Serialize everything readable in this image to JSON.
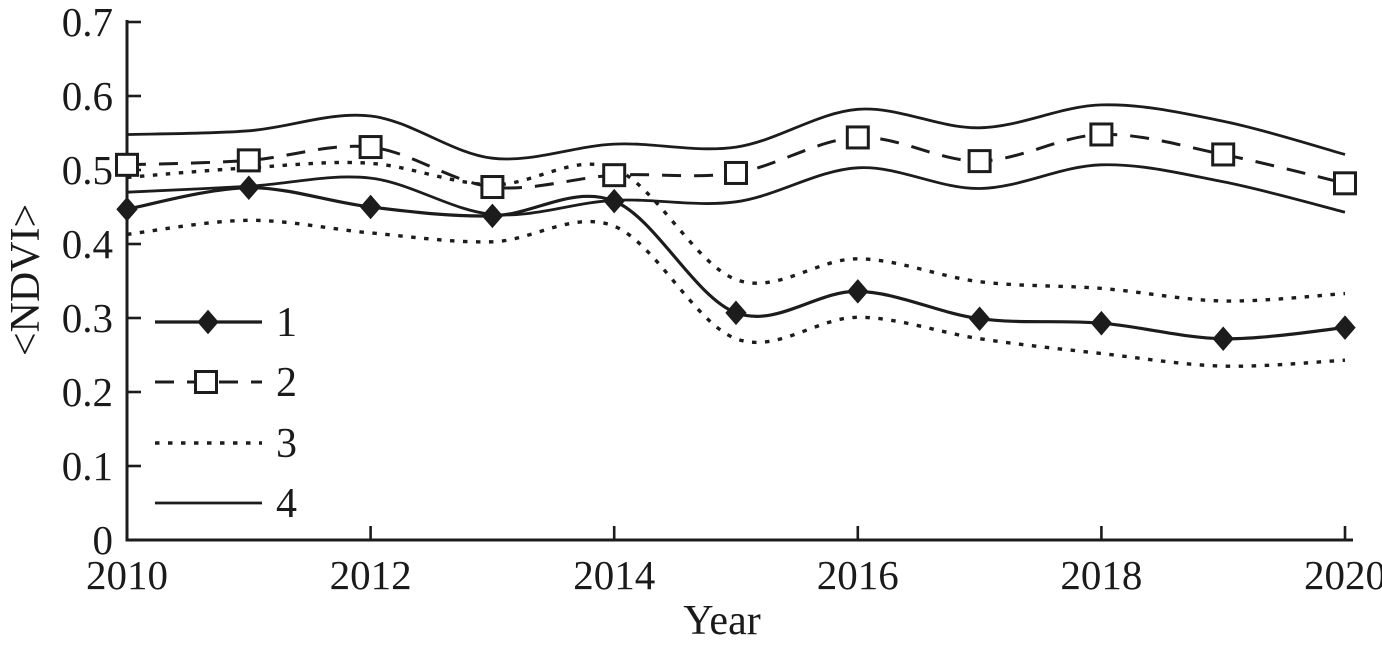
{
  "figure": {
    "y_axis_label": "<NDVI>",
    "x_axis_label": "Year"
  },
  "chart_data": {
    "type": "line",
    "title": "",
    "xlabel": "Year",
    "ylabel": "<NDVI>",
    "xlim": [
      2010,
      2020
    ],
    "ylim": [
      0,
      0.7
    ],
    "grid": false,
    "legend_position": "inside-lower-left",
    "x": [
      2010,
      2011,
      2012,
      2013,
      2014,
      2015,
      2016,
      2017,
      2018,
      2019,
      2020
    ],
    "x_tick_labels": [
      "2010",
      "2012",
      "2014",
      "2016",
      "2018",
      "2020"
    ],
    "y_tick_labels": [
      "0",
      "0.1",
      "0.2",
      "0.3",
      "0.4",
      "0.5",
      "0.6",
      "0.7"
    ],
    "y_tick_values": [
      0,
      0.1,
      0.2,
      0.3,
      0.4,
      0.5,
      0.6,
      0.7
    ],
    "series": [
      {
        "name": "1",
        "line": "solid",
        "marker": "filled-diamond",
        "values": [
          0.447,
          0.476,
          0.45,
          0.438,
          0.458,
          0.307,
          0.336,
          0.299,
          0.293,
          0.272,
          0.287
        ]
      },
      {
        "name": "2",
        "line": "dashed",
        "marker": "open-square",
        "values": [
          0.507,
          0.513,
          0.531,
          0.477,
          0.493,
          0.496,
          0.544,
          0.512,
          0.548,
          0.521,
          0.482
        ]
      },
      {
        "name": "3",
        "line": "dotted",
        "marker": "none",
        "band": true,
        "upper": [
          0.49,
          0.503,
          0.509,
          0.48,
          0.502,
          0.352,
          0.38,
          0.349,
          0.34,
          0.323,
          0.333
        ],
        "lower": [
          0.413,
          0.432,
          0.415,
          0.403,
          0.424,
          0.272,
          0.301,
          0.272,
          0.252,
          0.235,
          0.243
        ]
      },
      {
        "name": "4",
        "line": "solid",
        "marker": "none",
        "band": true,
        "upper": [
          0.548,
          0.553,
          0.573,
          0.516,
          0.535,
          0.531,
          0.582,
          0.557,
          0.588,
          0.566,
          0.521
        ],
        "lower": [
          0.47,
          0.478,
          0.489,
          0.44,
          0.459,
          0.457,
          0.503,
          0.475,
          0.507,
          0.484,
          0.443
        ]
      }
    ],
    "colors": {
      "line": "#1c1c1c",
      "background": "#ffffff"
    }
  }
}
